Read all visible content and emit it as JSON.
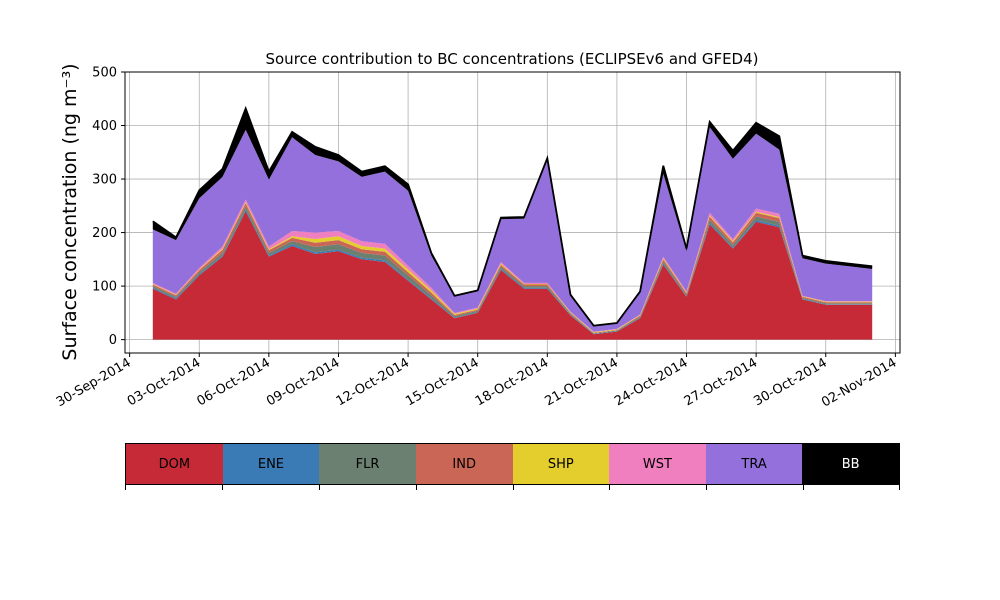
{
  "chart_data": {
    "type": "area",
    "stacked": true,
    "title": "Source contribution to BC concentrations (ECLIPSEv6 and GFED4)",
    "ylabel": "Surface concentration (ng m⁻³)",
    "ylim": [
      -25,
      500
    ],
    "yticks": [
      0,
      100,
      200,
      300,
      400,
      500
    ],
    "x_range_days": [
      "2014-09-30",
      "2014-11-02"
    ],
    "xticks": [
      "30-Sep-2014",
      "03-Oct-2014",
      "06-Oct-2014",
      "09-Oct-2014",
      "12-Oct-2014",
      "15-Oct-2014",
      "18-Oct-2014",
      "21-Oct-2014",
      "24-Oct-2014",
      "27-Oct-2014",
      "30-Oct-2014",
      "02-Nov-2014"
    ],
    "grid": true,
    "dates": [
      "2014-10-01",
      "2014-10-02",
      "2014-10-03",
      "2014-10-04",
      "2014-10-05",
      "2014-10-06",
      "2014-10-07",
      "2014-10-08",
      "2014-10-09",
      "2014-10-10",
      "2014-10-11",
      "2014-10-12",
      "2014-10-13",
      "2014-10-14",
      "2014-10-15",
      "2014-10-16",
      "2014-10-17",
      "2014-10-18",
      "2014-10-19",
      "2014-10-20",
      "2014-10-21",
      "2014-10-22",
      "2014-10-23",
      "2014-10-24",
      "2014-10-25",
      "2014-10-26",
      "2014-10-27",
      "2014-10-28",
      "2014-10-29",
      "2014-10-30",
      "2014-10-31",
      "2014-11-01"
    ],
    "series": [
      {
        "name": "DOM",
        "color": "#c62a36",
        "values": [
          95,
          75,
          120,
          155,
          240,
          155,
          175,
          160,
          165,
          150,
          145,
          110,
          75,
          40,
          50,
          130,
          95,
          95,
          45,
          10,
          15,
          40,
          140,
          80,
          215,
          170,
          220,
          210,
          75,
          65,
          65,
          65
        ]
      },
      {
        "name": "ENE",
        "color": "#3b7bb5",
        "values": [
          2,
          2,
          2,
          2,
          3,
          2,
          3,
          3,
          3,
          3,
          3,
          2,
          2,
          1,
          1,
          2,
          2,
          2,
          1,
          1,
          1,
          1,
          2,
          1,
          3,
          2,
          3,
          3,
          1,
          1,
          1,
          1
        ]
      },
      {
        "name": "FLR",
        "color": "#6b8070",
        "values": [
          3,
          3,
          4,
          5,
          6,
          5,
          6,
          10,
          10,
          9,
          9,
          8,
          6,
          3,
          3,
          4,
          3,
          3,
          2,
          1,
          1,
          2,
          4,
          3,
          6,
          5,
          7,
          7,
          2,
          2,
          2,
          2
        ]
      },
      {
        "name": "IND",
        "color": "#c96656",
        "values": [
          3,
          3,
          4,
          6,
          6,
          5,
          6,
          8,
          8,
          7,
          7,
          6,
          5,
          2,
          2,
          4,
          3,
          3,
          2,
          1,
          1,
          2,
          4,
          3,
          6,
          5,
          7,
          7,
          2,
          2,
          2,
          2
        ]
      },
      {
        "name": "SHP",
        "color": "#e3ce2e",
        "values": [
          1,
          1,
          1,
          2,
          2,
          2,
          3,
          7,
          7,
          6,
          6,
          5,
          4,
          2,
          2,
          2,
          1,
          1,
          1,
          1,
          1,
          1,
          2,
          1,
          2,
          2,
          2,
          2,
          1,
          1,
          1,
          1
        ]
      },
      {
        "name": "WST",
        "color": "#ef7fbe",
        "values": [
          2,
          2,
          3,
          4,
          5,
          5,
          10,
          12,
          10,
          9,
          9,
          7,
          5,
          2,
          2,
          3,
          2,
          2,
          1,
          1,
          1,
          1,
          3,
          2,
          5,
          4,
          6,
          6,
          1,
          1,
          1,
          1
        ]
      },
      {
        "name": "TRA",
        "color": "#9370db",
        "values": [
          100,
          100,
          130,
          130,
          130,
          125,
          175,
          145,
          130,
          120,
          135,
          140,
          60,
          30,
          30,
          80,
          120,
          230,
          30,
          10,
          10,
          40,
          155,
          75,
          160,
          150,
          140,
          120,
          70,
          70,
          65,
          60
        ]
      },
      {
        "name": "BB",
        "color": "#000000",
        "values": [
          15,
          5,
          15,
          15,
          40,
          15,
          10,
          15,
          12,
          10,
          10,
          12,
          5,
          2,
          2,
          3,
          3,
          3,
          2,
          1,
          1,
          3,
          15,
          5,
          10,
          15,
          20,
          25,
          5,
          5,
          5,
          5
        ]
      }
    ]
  },
  "legend": {
    "items": [
      {
        "label": "DOM",
        "color": "#c62a36",
        "text_color": "#000000"
      },
      {
        "label": "ENE",
        "color": "#3b7bb5",
        "text_color": "#000000"
      },
      {
        "label": "FLR",
        "color": "#6b8070",
        "text_color": "#000000"
      },
      {
        "label": "IND",
        "color": "#c96656",
        "text_color": "#000000"
      },
      {
        "label": "SHP",
        "color": "#e3ce2e",
        "text_color": "#000000"
      },
      {
        "label": "WST",
        "color": "#ef7fbe",
        "text_color": "#000000"
      },
      {
        "label": "TRA",
        "color": "#9370db",
        "text_color": "#000000"
      },
      {
        "label": "BB",
        "color": "#000000",
        "text_color": "#ffffff"
      }
    ]
  }
}
